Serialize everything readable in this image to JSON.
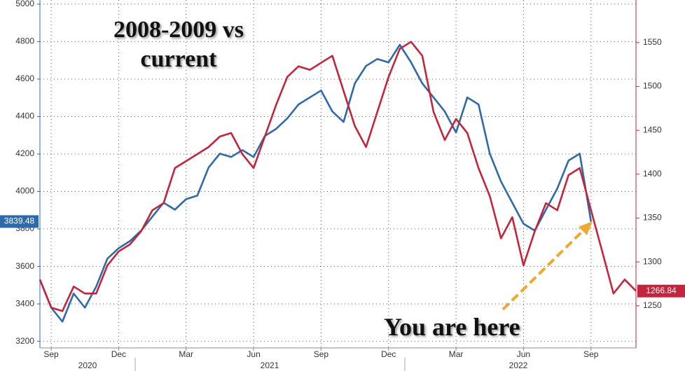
{
  "chart_data": {
    "type": "line",
    "title": "2008-2009 vs current",
    "annotations": [
      "You are here"
    ],
    "categories": [
      null,
      "Sep",
      null,
      null,
      null,
      null,
      null,
      "Dec",
      null,
      null,
      null,
      null,
      null,
      "Mar",
      null,
      null,
      null,
      null,
      null,
      "Jun",
      null,
      null,
      null,
      null,
      null,
      "Sep",
      null,
      null,
      null,
      null,
      null,
      "Dec",
      null,
      null,
      null,
      null,
      null,
      "Mar",
      null,
      null,
      null,
      null,
      null,
      "Jun",
      null,
      null,
      null,
      null,
      null,
      "Sep",
      null,
      null,
      null,
      null
    ],
    "years": [
      "2020",
      "2021",
      "2022"
    ],
    "series": [
      {
        "color": "#2f6aa8",
        "axis": "y",
        "values": [
          3529,
          3380,
          3305,
          3455,
          3380,
          3492,
          3641,
          3697,
          3735,
          3791,
          3866,
          3940,
          3903,
          3959,
          3978,
          4128,
          4202,
          4184,
          4221,
          4184,
          4296,
          4334,
          4390,
          4465,
          4502,
          4539,
          4427,
          4371,
          4577,
          4670,
          4707,
          4689,
          4783,
          4689,
          4577,
          4502,
          4427,
          4315,
          4502,
          4465,
          4202,
          4053,
          3940,
          3828,
          3791,
          3903,
          4015,
          4165,
          4202,
          3839.48,
          null,
          null,
          null,
          null
        ]
      },
      {
        "color": "#c4243c",
        "axis": "y2",
        "values": [
          1280,
          1248,
          1244,
          1272,
          1264,
          1264,
          1296,
          1312,
          1320,
          1335,
          1359,
          1367,
          1407,
          1415,
          1423,
          1431,
          1443,
          1447,
          1423,
          1407,
          1443,
          1479,
          1511,
          1523,
          1519,
          1527,
          1535,
          1495,
          1455,
          1431,
          1471,
          1511,
          1543,
          1551,
          1535,
          1471,
          1439,
          1463,
          1447,
          1407,
          1375,
          1327,
          1351,
          1296,
          1335,
          1367,
          1359,
          1399,
          1407,
          1359,
          1312,
          1264,
          1280,
          1266.84
        ]
      }
    ],
    "ylim": [
      3165,
      5022
    ],
    "yticks": [
      3200,
      3400,
      3600,
      3800,
      4000,
      4200,
      4400,
      4600,
      4800,
      5000
    ],
    "y2lim": [
      1202,
      1598.6
    ],
    "y2ticks": [
      1250,
      1300,
      1350,
      1400,
      1450,
      1500,
      1550
    ],
    "grid": true
  }
}
